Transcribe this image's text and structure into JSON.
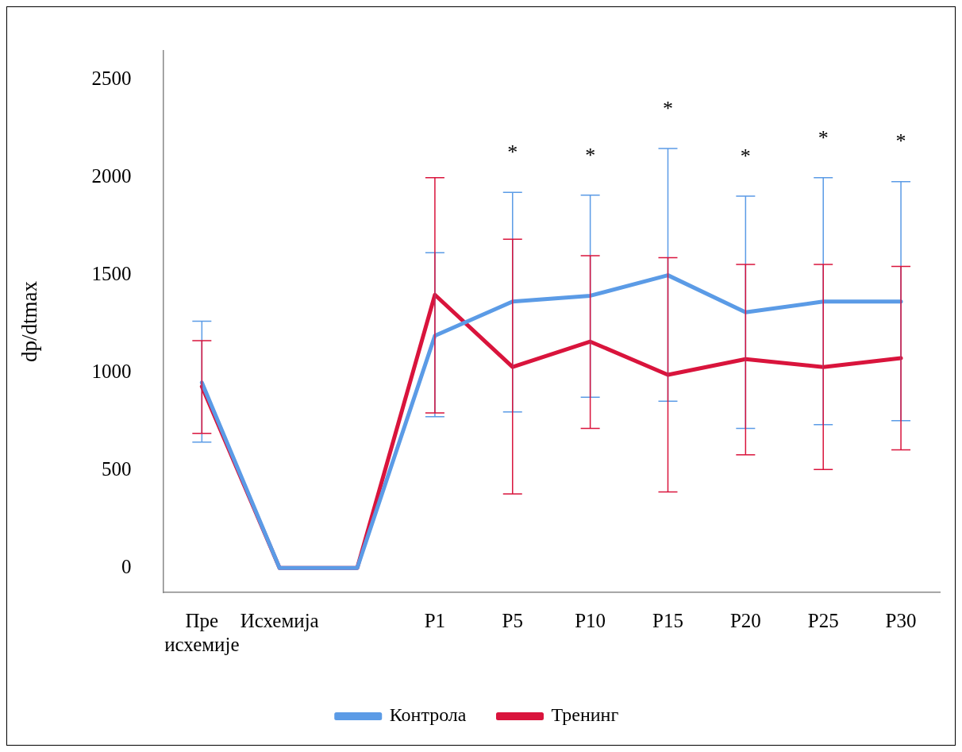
{
  "chart_data": {
    "type": "line",
    "ylabel": "dp/dtmax",
    "categories": [
      "Пре исхемије",
      "Исхемија",
      null,
      "P1",
      "P5",
      "P10",
      "P15",
      "P20",
      "P25",
      "P30"
    ],
    "series": [
      {
        "name": "Контрола",
        "color": "#5b9be6",
        "values": [
          950,
          0,
          0,
          1190,
          1365,
          1395,
          1500,
          1310,
          1365,
          1365
        ],
        "errors": [
          [
            645,
            1265
          ],
          null,
          null,
          [
            775,
            1615
          ],
          [
            800,
            1925
          ],
          [
            875,
            1910
          ],
          [
            855,
            2150
          ],
          [
            715,
            1905
          ],
          [
            735,
            2000
          ],
          [
            755,
            1980
          ]
        ]
      },
      {
        "name": "Тренинг",
        "color": "#d9143c",
        "values": [
          930,
          0,
          0,
          1400,
          1030,
          1160,
          990,
          1070,
          1030,
          1075
        ],
        "errors": [
          [
            690,
            1165
          ],
          null,
          null,
          [
            795,
            2000
          ],
          [
            380,
            1685
          ],
          [
            715,
            1600
          ],
          [
            390,
            1590
          ],
          [
            580,
            1555
          ],
          [
            505,
            1555
          ],
          [
            605,
            1545
          ]
        ]
      }
    ],
    "annotations": [
      "*",
      "*",
      "*",
      "*",
      "*",
      "*"
    ],
    "ylim": [
      -125,
      2650
    ],
    "yticks": [
      0,
      500,
      1000,
      1500,
      2000,
      2500
    ],
    "grid": false,
    "legend": "bottom",
    "marker": "none",
    "line_style": "solid"
  }
}
